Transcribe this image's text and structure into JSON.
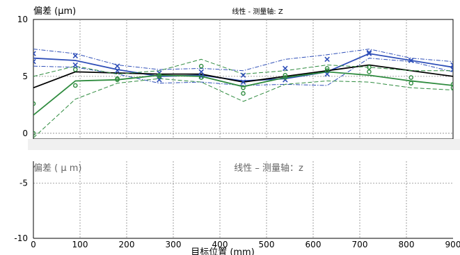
{
  "chart_data": {
    "type": "line",
    "title": "线性 - 测量轴: Z",
    "ylabel": "偏差 (µm)",
    "xlabel": "目标位置 (mm)",
    "overlay_title": "线性 – 测量轴：z",
    "overlay_ylabel": "偏差 ( µ m)",
    "x_ticks": [
      "0",
      "100",
      "200",
      "300",
      "400",
      "500",
      "600",
      "700",
      "800",
      "900"
    ],
    "upper_y_ticks": [
      "10",
      "5",
      "0"
    ],
    "lower_y_ticks": [
      "-5",
      "-10"
    ],
    "xlim": [
      0,
      900
    ],
    "upper_ylim": [
      -0.5,
      10
    ],
    "lower_ylim": [
      -10,
      -3
    ],
    "grid": true,
    "x": [
      0,
      90,
      180,
      270,
      360,
      450,
      540,
      630,
      720,
      810,
      900
    ],
    "series": [
      {
        "color": "#2f4fb8",
        "style": "solid",
        "marker": "x",
        "values": [
          6.6,
          6.4,
          5.6,
          5.0,
          5.1,
          4.6,
          4.8,
          5.4,
          7.0,
          6.4,
          5.8
        ]
      },
      {
        "color": "#2f4fb8",
        "style": "dashdot",
        "values": [
          7.4,
          7.0,
          6.0,
          5.6,
          5.7,
          5.5,
          6.5,
          6.9,
          7.4,
          6.6,
          6.3
        ]
      },
      {
        "color": "#2f4fb8",
        "style": "dashdot",
        "values": [
          5.9,
          5.8,
          5.2,
          4.4,
          4.5,
          4.2,
          4.3,
          4.2,
          6.6,
          6.3,
          5.4
        ]
      },
      {
        "color": "#000000",
        "style": "solid",
        "values": [
          4.0,
          5.4,
          5.3,
          5.2,
          5.2,
          4.5,
          5.0,
          5.5,
          6.0,
          5.5,
          5.0
        ]
      },
      {
        "color": "#2e8b3e",
        "style": "solid",
        "marker": "o",
        "values": [
          1.6,
          4.6,
          4.7,
          5.1,
          5.0,
          4.1,
          4.9,
          5.4,
          5.1,
          4.6,
          4.2
        ]
      },
      {
        "color": "#2e8b3e",
        "style": "dashed",
        "values": [
          -0.4,
          3.0,
          4.4,
          4.8,
          4.5,
          2.8,
          4.3,
          4.6,
          4.5,
          4.0,
          3.8
        ]
      },
      {
        "color": "#2e8b3e",
        "style": "dashed",
        "values": [
          5.0,
          5.9,
          5.2,
          5.5,
          6.5,
          5.2,
          5.5,
          6.0,
          5.8,
          5.5,
          5.5
        ]
      }
    ],
    "marker_points": {
      "x_marks": [
        [
          0,
          7.0
        ],
        [
          0,
          6.3
        ],
        [
          90,
          6.8
        ],
        [
          90,
          6.0
        ],
        [
          180,
          5.9
        ],
        [
          180,
          5.5
        ],
        [
          270,
          4.7
        ],
        [
          270,
          5.3
        ],
        [
          360,
          5.0
        ],
        [
          360,
          5.4
        ],
        [
          450,
          5.1
        ],
        [
          450,
          4.5
        ],
        [
          540,
          5.7
        ],
        [
          540,
          4.7
        ],
        [
          630,
          6.5
        ],
        [
          630,
          5.2
        ],
        [
          720,
          7.1
        ],
        [
          720,
          7.0
        ],
        [
          810,
          6.4
        ],
        [
          810,
          6.4
        ],
        [
          900,
          6.0
        ],
        [
          900,
          5.6
        ]
      ],
      "o_marks": [
        [
          0,
          2.6
        ],
        [
          0,
          0.0
        ],
        [
          90,
          4.2
        ],
        [
          90,
          5.6
        ],
        [
          180,
          4.7
        ],
        [
          180,
          4.8
        ],
        [
          270,
          5.1
        ],
        [
          270,
          5.0
        ],
        [
          360,
          5.9
        ],
        [
          360,
          4.9
        ],
        [
          450,
          3.5
        ],
        [
          450,
          4.0
        ],
        [
          540,
          4.9
        ],
        [
          540,
          5.1
        ],
        [
          630,
          5.5
        ],
        [
          630,
          5.7
        ],
        [
          720,
          5.4
        ],
        [
          720,
          5.8
        ],
        [
          810,
          4.9
        ],
        [
          810,
          4.4
        ],
        [
          900,
          4.0
        ],
        [
          900,
          4.3
        ]
      ]
    }
  }
}
